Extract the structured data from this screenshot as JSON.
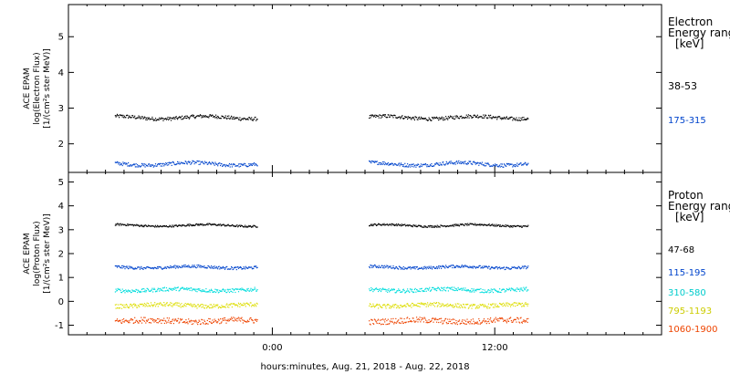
{
  "chart_data": [
    {
      "type": "scatter",
      "panel": "electron",
      "ylabel_lines": [
        "ACE EPAM",
        "log(Electron Flux)",
        "[1/(cm²s ster MeV)]"
      ],
      "ylim": [
        1.2,
        5.9
      ],
      "yticks": [
        2,
        3,
        4,
        5
      ],
      "legend_title_lines": [
        "Electron",
        "Energy ranges",
        "[keV]"
      ],
      "series": [
        {
          "name": "38-53",
          "color": "#000000",
          "level": 2.75,
          "noise": 0.05
        },
        {
          "name": "175-315",
          "color": "#0044cc",
          "level": 1.45,
          "noise": 0.05
        }
      ]
    },
    {
      "type": "scatter",
      "panel": "proton",
      "ylabel_lines": [
        "ACE EPAM",
        "log(Proton Flux)",
        "[1/(cm²s ster MeV)]"
      ],
      "ylim": [
        -1.4,
        5.4
      ],
      "yticks": [
        -1,
        0,
        1,
        2,
        3,
        4,
        5
      ],
      "legend_title_lines": [
        "Proton",
        "Energy ranges",
        "[keV]"
      ],
      "series": [
        {
          "name": "47-68",
          "color": "#000000",
          "level": 3.2,
          "noise": 0.04
        },
        {
          "name": "115-195",
          "color": "#0044cc",
          "level": 1.45,
          "noise": 0.06
        },
        {
          "name": "310-580",
          "color": "#00dddd",
          "level": 0.5,
          "noise": 0.08
        },
        {
          "name": "795-1193",
          "color": "#dddd00",
          "level": -0.15,
          "noise": 0.09
        },
        {
          "name": "1060-1900",
          "color": "#ee4400",
          "level": -0.8,
          "noise": 0.12
        }
      ]
    }
  ],
  "time_axis": {
    "range_hours": [
      -11.0,
      21.0
    ],
    "tick_labels": [
      {
        "hour": 0,
        "label": "0:00"
      },
      {
        "hour": 12,
        "label": "12:00"
      }
    ],
    "data_segments": [
      [
        -8.5,
        -0.8
      ],
      [
        5.2,
        13.8
      ]
    ],
    "xlabel": "hours:minutes, Aug. 21, 2018 - Aug. 22, 2018"
  }
}
